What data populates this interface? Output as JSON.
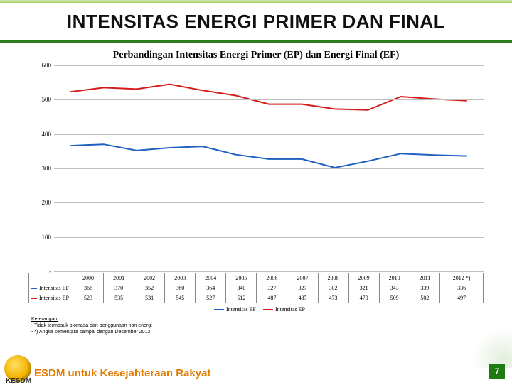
{
  "slide": {
    "title": "INTENSITAS ENERGI PRIMER DAN FINAL",
    "subtitle": "Perbandingan Intensitas Energi Primer (EP) dan Energi Final (EF)",
    "page_number": "7",
    "footer_text": "ESDM untuk Kesejahteraan Rakyat",
    "ministry_label": "KESDM"
  },
  "notes": {
    "heading": "Keterangan:",
    "line1": "- Tidak termasuk biomasa dan penggunaan non energi",
    "line2": "- *) Angka sementara sampai dengan Desember 2013"
  },
  "chart": {
    "type": "line",
    "background_color": "#ffffff",
    "grid_color": "#bfbfbf",
    "ylim": [
      0,
      600
    ],
    "ytick_step": 100,
    "yticks": [
      "-",
      "100",
      "200",
      "300",
      "400",
      "500",
      "600"
    ],
    "tick_fontsize": 9,
    "categories": [
      "2000",
      "2001",
      "2002",
      "2003",
      "2004",
      "2005",
      "2006",
      "2007",
      "2008",
      "2009",
      "2010",
      "2011",
      "2012 *)"
    ],
    "series": [
      {
        "key": "ef",
        "label": "Intensitas EF",
        "color": "#1f5fbf",
        "line_width": 2,
        "values": [
          366,
          370,
          352,
          360,
          364,
          340,
          327,
          327,
          302,
          321,
          343,
          339,
          336
        ]
      },
      {
        "key": "ep",
        "label": "Intensitas EP",
        "color": "#d41c1c",
        "line_width": 2,
        "values": [
          523,
          535,
          531,
          545,
          527,
          512,
          487,
          487,
          473,
          470,
          509,
          502,
          497
        ]
      }
    ],
    "legend": {
      "items": [
        "Intensitas EF",
        "Intensitas EP"
      ]
    }
  }
}
